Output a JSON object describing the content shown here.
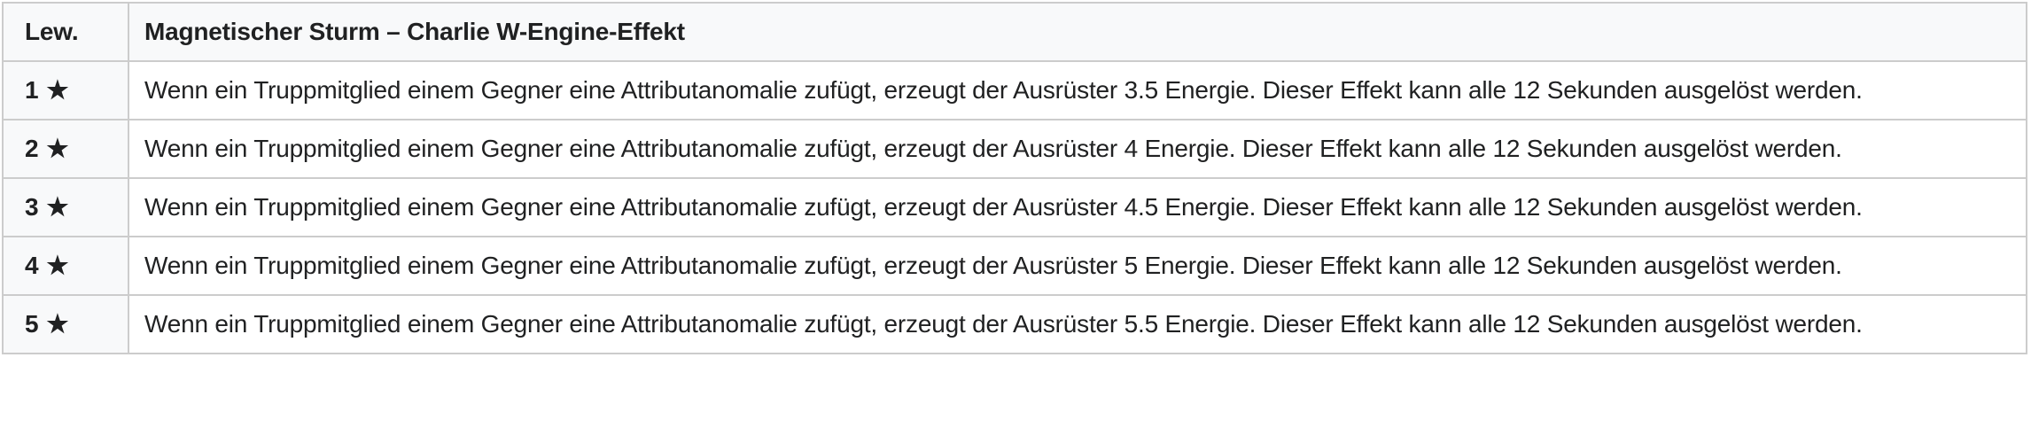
{
  "table": {
    "star": "★",
    "columns": {
      "level": "Lew.",
      "title": "Magnetischer Sturm – Charlie W-Engine-Effekt"
    },
    "rows": [
      {
        "level_number": "1",
        "description": "Wenn ein Truppmitglied einem Gegner eine Attributanomalie zufügt, erzeugt der Ausrüster 3.5 Energie. Dieser Effekt kann alle 12 Sekunden ausgelöst werden."
      },
      {
        "level_number": "2",
        "description": "Wenn ein Truppmitglied einem Gegner eine Attributanomalie zufügt, erzeugt der Ausrüster 4 Energie. Dieser Effekt kann alle 12 Sekunden ausgelöst werden."
      },
      {
        "level_number": "3",
        "description": "Wenn ein Truppmitglied einem Gegner eine Attributanomalie zufügt, erzeugt der Ausrüster 4.5 Energie. Dieser Effekt kann alle 12 Sekunden ausgelöst werden."
      },
      {
        "level_number": "4",
        "description": "Wenn ein Truppmitglied einem Gegner eine Attributanomalie zufügt, erzeugt der Ausrüster 5 Energie. Dieser Effekt kann alle 12 Sekunden ausgelöst werden."
      },
      {
        "level_number": "5",
        "description": "Wenn ein Truppmitglied einem Gegner eine Attributanomalie zufügt, erzeugt der Ausrüster 5.5 Energie. Dieser Effekt kann alle 12 Sekunden ausgelöst werden."
      }
    ],
    "colors": {
      "header_bg": "#f8f9fa",
      "label_bg": "#f8f9fa",
      "body_bg": "#ffffff",
      "border": "#cccccc",
      "text": "#202122"
    }
  }
}
